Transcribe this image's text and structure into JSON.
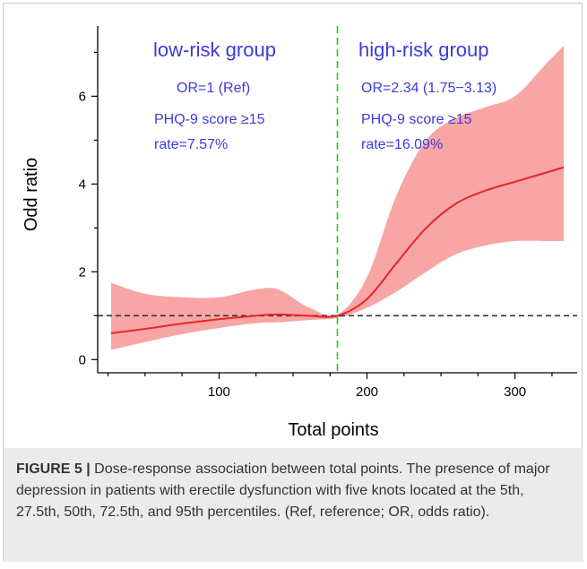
{
  "chart_data": {
    "type": "line",
    "xlabel": "Total points",
    "ylabel": "Odd ratio",
    "xlim": [
      18,
      342
    ],
    "ylim": [
      -0.3,
      7.6
    ],
    "x_ticks": [
      100,
      200,
      300
    ],
    "y_ticks": [
      0,
      2,
      4,
      6
    ],
    "grid": false,
    "colors": {
      "curve": "#e8262a",
      "band": "#f8a5a5",
      "reference_line": "#333333",
      "cutoff_line": "#22c922",
      "annotation": "#3b3bdc"
    },
    "reference_line": {
      "y": 1
    },
    "cutoff_line": {
      "x": 180
    },
    "series": [
      {
        "values": [
          {
            "x": 27,
            "y": 0.6,
            "lo": 0.22,
            "hi": 1.75
          },
          {
            "x": 50,
            "y": 0.7,
            "lo": 0.4,
            "hi": 1.5
          },
          {
            "x": 75,
            "y": 0.82,
            "lo": 0.58,
            "hi": 1.42
          },
          {
            "x": 100,
            "y": 0.92,
            "lo": 0.72,
            "hi": 1.42
          },
          {
            "x": 125,
            "y": 1.0,
            "lo": 0.83,
            "hi": 1.6
          },
          {
            "x": 140,
            "y": 1.03,
            "lo": 0.85,
            "hi": 1.6
          },
          {
            "x": 160,
            "y": 1.0,
            "lo": 0.9,
            "hi": 1.2
          },
          {
            "x": 180,
            "y": 1.0,
            "lo": 0.95,
            "hi": 1.03
          },
          {
            "x": 200,
            "y": 1.38,
            "lo": 1.18,
            "hi": 1.88
          },
          {
            "x": 220,
            "y": 2.2,
            "lo": 1.55,
            "hi": 3.75
          },
          {
            "x": 240,
            "y": 3.0,
            "lo": 2.0,
            "hi": 5.0
          },
          {
            "x": 260,
            "y": 3.55,
            "lo": 2.4,
            "hi": 5.5
          },
          {
            "x": 280,
            "y": 3.85,
            "lo": 2.6,
            "hi": 5.75
          },
          {
            "x": 300,
            "y": 4.05,
            "lo": 2.7,
            "hi": 6.0
          },
          {
            "x": 320,
            "y": 4.25,
            "lo": 2.7,
            "hi": 6.7
          },
          {
            "x": 333,
            "y": 4.38,
            "lo": 2.7,
            "hi": 7.15
          }
        ]
      }
    ],
    "annotations": {
      "low_group_title": "low-risk group",
      "low_group_or": "OR=1 (Ref)",
      "low_group_phq": "PHQ-9 score ≥15",
      "low_group_rate": "rate=7.57%",
      "high_group_title": "high-risk group",
      "high_group_or": "OR=2.34 (1.75−3.13)",
      "high_group_phq": "PHQ-9 score ≥15",
      "high_group_rate": "rate=16.09%"
    }
  },
  "caption": {
    "label": "FIGURE 5 |",
    "text": " Dose-response association between total points. The presence of major depression in patients with erectile dysfunction with five knots located at the 5th, 27.5th, 50th, 72.5th, and 95th percentiles. (Ref, reference; OR, odds ratio)."
  }
}
